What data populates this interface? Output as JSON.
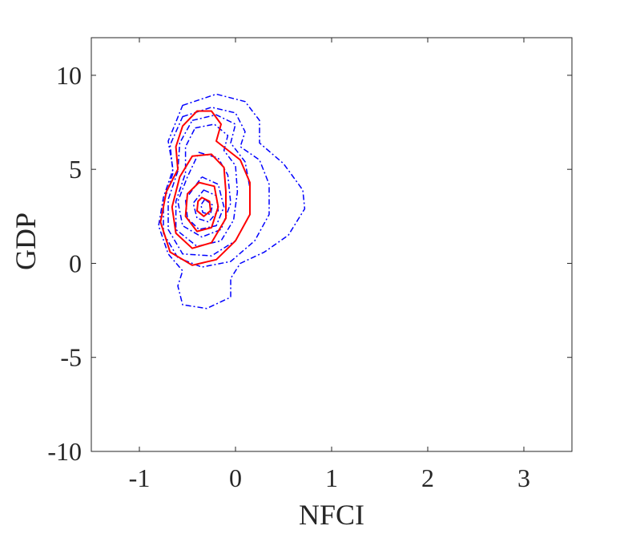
{
  "chart_data": {
    "type": "contour",
    "xlabel": "NFCI",
    "ylabel": "GDP",
    "xlim": [
      -1.5,
      3.5
    ],
    "ylim": [
      -10,
      12
    ],
    "x_ticks": [
      -1,
      0,
      1,
      2,
      3
    ],
    "x_tick_labels": [
      "-1",
      "0",
      "1",
      "2",
      "3"
    ],
    "y_ticks": [
      -10,
      -5,
      0,
      5,
      10
    ],
    "y_tick_labels": [
      "-10",
      "-5",
      "0",
      "5",
      "10"
    ],
    "grid": false,
    "box": true,
    "colors": {
      "solid": "#ff0000",
      "dashdot": "#0000ff",
      "axis": "#262626"
    },
    "series": [
      {
        "style": "dashdot",
        "contours": [
          [
            [
              -0.55,
              8.4
            ],
            [
              -0.2,
              9.0
            ],
            [
              0.1,
              8.6
            ],
            [
              0.25,
              7.6
            ],
            [
              0.25,
              6.4
            ],
            [
              0.5,
              5.3
            ],
            [
              0.7,
              3.9
            ],
            [
              0.72,
              2.9
            ],
            [
              0.55,
              1.5
            ],
            [
              0.3,
              0.6
            ],
            [
              0.05,
              0.0
            ],
            [
              -0.05,
              -0.8
            ],
            [
              -0.05,
              -1.8
            ],
            [
              -0.3,
              -2.4
            ],
            [
              -0.55,
              -2.2
            ],
            [
              -0.6,
              -1.2
            ],
            [
              -0.55,
              -0.4
            ],
            [
              -0.7,
              0.5
            ],
            [
              -0.8,
              2.0
            ],
            [
              -0.75,
              3.5
            ],
            [
              -0.65,
              5.0
            ],
            [
              -0.7,
              6.5
            ],
            [
              -0.55,
              8.4
            ]
          ],
          [
            [
              -0.55,
              7.8
            ],
            [
              -0.25,
              8.3
            ],
            [
              0.0,
              8.0
            ],
            [
              0.1,
              7.0
            ],
            [
              0.05,
              6.2
            ],
            [
              0.25,
              5.5
            ],
            [
              0.35,
              4.2
            ],
            [
              0.35,
              2.6
            ],
            [
              0.2,
              1.2
            ],
            [
              -0.05,
              0.1
            ],
            [
              -0.35,
              -0.2
            ],
            [
              -0.6,
              0.3
            ],
            [
              -0.75,
              1.6
            ],
            [
              -0.75,
              3.2
            ],
            [
              -0.65,
              4.8
            ],
            [
              -0.68,
              6.3
            ],
            [
              -0.55,
              7.8
            ]
          ],
          [
            [
              -0.45,
              7.6
            ],
            [
              -0.2,
              7.9
            ],
            [
              0.0,
              7.4
            ],
            [
              -0.05,
              6.4
            ],
            [
              0.1,
              5.4
            ],
            [
              0.15,
              4.0
            ],
            [
              0.15,
              2.6
            ],
            [
              0.0,
              1.2
            ],
            [
              -0.25,
              0.4
            ],
            [
              -0.55,
              0.5
            ],
            [
              -0.7,
              1.8
            ],
            [
              -0.7,
              3.4
            ],
            [
              -0.6,
              4.9
            ],
            [
              -0.58,
              6.4
            ],
            [
              -0.45,
              7.6
            ]
          ],
          [
            [
              -0.42,
              7.2
            ],
            [
              -0.22,
              7.4
            ],
            [
              -0.08,
              6.8
            ],
            [
              -0.12,
              6.0
            ],
            [
              0.0,
              5.2
            ],
            [
              0.02,
              3.8
            ],
            [
              -0.02,
              2.3
            ],
            [
              -0.15,
              1.2
            ],
            [
              -0.4,
              0.9
            ],
            [
              -0.62,
              1.8
            ],
            [
              -0.62,
              3.3
            ],
            [
              -0.52,
              4.8
            ],
            [
              -0.52,
              6.2
            ],
            [
              -0.42,
              7.2
            ]
          ],
          [
            [
              -0.38,
              5.9
            ],
            [
              -0.18,
              5.6
            ],
            [
              -0.08,
              4.7
            ],
            [
              -0.05,
              3.2
            ],
            [
              -0.15,
              1.8
            ],
            [
              -0.35,
              1.4
            ],
            [
              -0.55,
              2.0
            ],
            [
              -0.6,
              3.3
            ],
            [
              -0.5,
              4.6
            ],
            [
              -0.38,
              5.9
            ]
          ],
          [
            [
              -0.35,
              4.6
            ],
            [
              -0.18,
              4.2
            ],
            [
              -0.12,
              3.0
            ],
            [
              -0.2,
              2.0
            ],
            [
              -0.38,
              1.8
            ],
            [
              -0.5,
              2.4
            ],
            [
              -0.52,
              3.4
            ],
            [
              -0.35,
              4.6
            ]
          ],
          [
            [
              -0.33,
              3.9
            ],
            [
              -0.2,
              3.6
            ],
            [
              -0.18,
              2.8
            ],
            [
              -0.28,
              2.2
            ],
            [
              -0.4,
              2.4
            ],
            [
              -0.44,
              3.2
            ],
            [
              -0.33,
              3.9
            ]
          ],
          [
            [
              -0.32,
              3.4
            ],
            [
              -0.24,
              3.1
            ],
            [
              -0.26,
              2.6
            ],
            [
              -0.34,
              2.7
            ],
            [
              -0.36,
              3.1
            ],
            [
              -0.32,
              3.4
            ]
          ]
        ]
      },
      {
        "style": "solid",
        "contours": [
          [
            [
              -0.4,
              8.1
            ],
            [
              -0.25,
              8.1
            ],
            [
              -0.15,
              7.4
            ],
            [
              -0.2,
              6.5
            ],
            [
              0.05,
              5.5
            ],
            [
              0.15,
              4.3
            ],
            [
              0.15,
              2.6
            ],
            [
              0.0,
              1.2
            ],
            [
              -0.2,
              0.2
            ],
            [
              -0.45,
              -0.1
            ],
            [
              -0.68,
              0.6
            ],
            [
              -0.78,
              2.2
            ],
            [
              -0.72,
              3.8
            ],
            [
              -0.6,
              5.0
            ],
            [
              -0.62,
              6.2
            ],
            [
              -0.55,
              7.3
            ],
            [
              -0.4,
              8.1
            ]
          ],
          [
            [
              -0.45,
              5.7
            ],
            [
              -0.25,
              5.8
            ],
            [
              -0.12,
              5.1
            ],
            [
              -0.1,
              3.8
            ],
            [
              -0.1,
              2.4
            ],
            [
              -0.25,
              1.1
            ],
            [
              -0.45,
              0.8
            ],
            [
              -0.62,
              1.6
            ],
            [
              -0.66,
              3.0
            ],
            [
              -0.58,
              4.6
            ],
            [
              -0.45,
              5.7
            ]
          ],
          [
            [
              -0.38,
              4.3
            ],
            [
              -0.22,
              4.1
            ],
            [
              -0.18,
              3.0
            ],
            [
              -0.25,
              1.9
            ],
            [
              -0.4,
              1.7
            ],
            [
              -0.52,
              2.5
            ],
            [
              -0.5,
              3.7
            ],
            [
              -0.38,
              4.3
            ]
          ],
          [
            [
              -0.35,
              3.5
            ],
            [
              -0.27,
              3.3
            ],
            [
              -0.26,
              2.8
            ],
            [
              -0.33,
              2.5
            ],
            [
              -0.4,
              2.8
            ],
            [
              -0.39,
              3.3
            ],
            [
              -0.35,
              3.5
            ]
          ]
        ]
      }
    ]
  }
}
